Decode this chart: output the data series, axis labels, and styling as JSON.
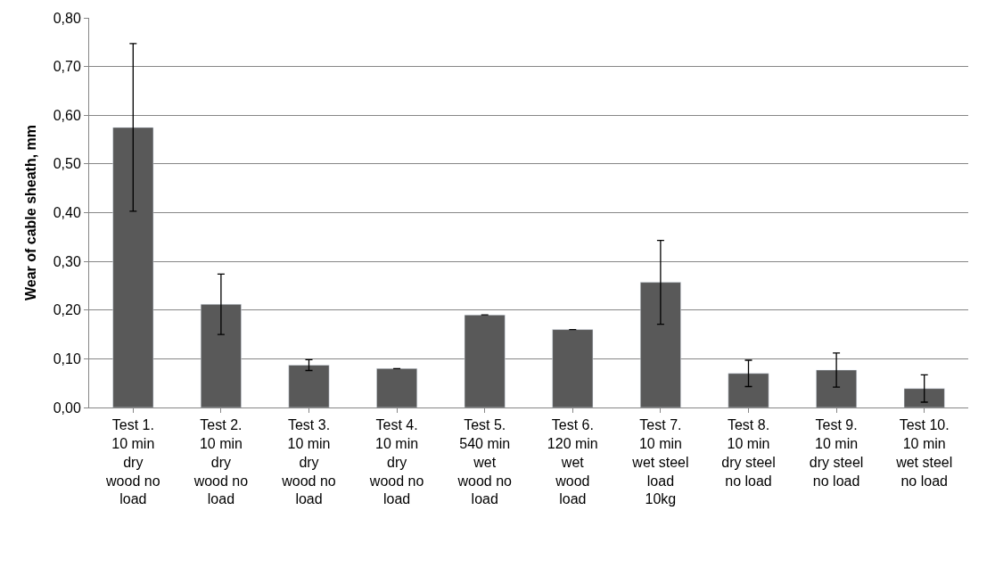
{
  "chart_data": {
    "type": "bar",
    "ylabel": "Wear of cable sheath, mm",
    "categories": [
      "Test 1.\n10 min\ndry\nwood no\nload",
      "Test 2.\n10 min\ndry\nwood no\nload",
      "Test 3.\n10 min\ndry\nwood no\nload",
      "Test 4.\n10 min\ndry\nwood no\nload",
      "Test 5.\n540 min\nwet\nwood no\nload",
      "Test 6.\n120 min\nwet\nwood\nload",
      "Test 7.\n10 min\nwet steel\nload\n10kg",
      "Test 8.\n10 min\ndry steel\nno load",
      "Test 9.\n10 min\ndry steel\nno load",
      "Test 10.\n10 min\nwet steel\nno load"
    ],
    "values": [
      0.575,
      0.212,
      0.087,
      0.08,
      0.19,
      0.16,
      0.257,
      0.07,
      0.077,
      0.039
    ],
    "errors": [
      0.172,
      0.062,
      0.011,
      null,
      null,
      null,
      0.086,
      0.027,
      0.035,
      0.028
    ],
    "color": "#595959",
    "ylim": [
      0,
      0.8
    ],
    "yticks": [
      {
        "value": 0,
        "label": "0,00"
      },
      {
        "value": 0.1,
        "label": "0,10"
      },
      {
        "value": 0.2,
        "label": "0,20"
      },
      {
        "value": 0.3,
        "label": "0,30"
      },
      {
        "value": 0.4,
        "label": "0,40"
      },
      {
        "value": 0.5,
        "label": "0,50"
      },
      {
        "value": 0.6,
        "label": "0,60"
      },
      {
        "value": 0.7,
        "label": "0,70"
      },
      {
        "value": 0.8,
        "label": "0,80"
      }
    ],
    "grid": "y"
  }
}
